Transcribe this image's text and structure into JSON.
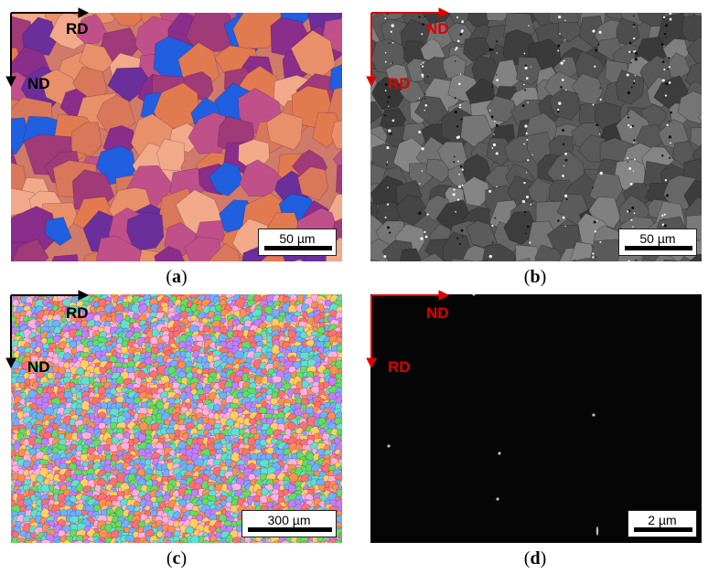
{
  "panels": [
    {
      "id": "a",
      "caption_letter": "a",
      "scale_label": "50 µm",
      "dir_x": "RD",
      "dir_y": "ND",
      "arrow_color": "#000000"
    },
    {
      "id": "b",
      "caption_letter": "b",
      "scale_label": "50 µm",
      "dir_x": "ND",
      "dir_y": "RD",
      "arrow_color": "#e00000"
    },
    {
      "id": "c",
      "caption_letter": "c",
      "scale_label": "300 µm",
      "dir_x": "RD",
      "dir_y": "ND",
      "arrow_color": "#000000"
    },
    {
      "id": "d",
      "caption_letter": "d",
      "scale_label": "2 µm",
      "dir_x": "ND",
      "dir_y": "RD",
      "arrow_color": "#e00000"
    }
  ],
  "colors": {
    "ebsd_a_palette": [
      "#e8906a",
      "#d9775a",
      "#8b2d8a",
      "#6a2f9a",
      "#a03a78",
      "#f2a98a",
      "#1f5fe0",
      "#c0508a",
      "#e27a50"
    ],
    "ebsd_c_palette": [
      "#ff7070",
      "#60e060",
      "#ffb0e0",
      "#70b0ff",
      "#ffd060",
      "#c080ff",
      "#60e0d0",
      "#ff9050"
    ],
    "sem_gray_range": [
      "#3a3a3a",
      "#8a8a8a"
    ],
    "tem_background": "#050505"
  }
}
